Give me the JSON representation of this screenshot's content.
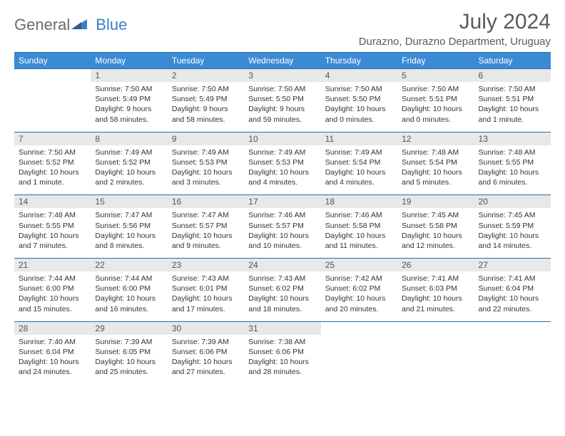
{
  "logo": {
    "text_general": "General",
    "text_blue": "Blue"
  },
  "title": "July 2024",
  "location": "Durazno, Durazno Department, Uruguay",
  "colors": {
    "header_bg": "#3b8bd4",
    "header_border": "#2f6aa8",
    "daynum_bg": "#e8e8e8",
    "logo_gray": "#6b6b6b",
    "logo_blue": "#3b7fc4"
  },
  "weekdays": [
    "Sunday",
    "Monday",
    "Tuesday",
    "Wednesday",
    "Thursday",
    "Friday",
    "Saturday"
  ],
  "weeks": [
    {
      "nums": [
        "",
        "1",
        "2",
        "3",
        "4",
        "5",
        "6"
      ],
      "cells": [
        {
          "sunrise": "",
          "sunset": "",
          "daylight": ""
        },
        {
          "sunrise": "Sunrise: 7:50 AM",
          "sunset": "Sunset: 5:49 PM",
          "daylight": "Daylight: 9 hours and 58 minutes."
        },
        {
          "sunrise": "Sunrise: 7:50 AM",
          "sunset": "Sunset: 5:49 PM",
          "daylight": "Daylight: 9 hours and 58 minutes."
        },
        {
          "sunrise": "Sunrise: 7:50 AM",
          "sunset": "Sunset: 5:50 PM",
          "daylight": "Daylight: 9 hours and 59 minutes."
        },
        {
          "sunrise": "Sunrise: 7:50 AM",
          "sunset": "Sunset: 5:50 PM",
          "daylight": "Daylight: 10 hours and 0 minutes."
        },
        {
          "sunrise": "Sunrise: 7:50 AM",
          "sunset": "Sunset: 5:51 PM",
          "daylight": "Daylight: 10 hours and 0 minutes."
        },
        {
          "sunrise": "Sunrise: 7:50 AM",
          "sunset": "Sunset: 5:51 PM",
          "daylight": "Daylight: 10 hours and 1 minute."
        }
      ]
    },
    {
      "nums": [
        "7",
        "8",
        "9",
        "10",
        "11",
        "12",
        "13"
      ],
      "cells": [
        {
          "sunrise": "Sunrise: 7:50 AM",
          "sunset": "Sunset: 5:52 PM",
          "daylight": "Daylight: 10 hours and 1 minute."
        },
        {
          "sunrise": "Sunrise: 7:49 AM",
          "sunset": "Sunset: 5:52 PM",
          "daylight": "Daylight: 10 hours and 2 minutes."
        },
        {
          "sunrise": "Sunrise: 7:49 AM",
          "sunset": "Sunset: 5:53 PM",
          "daylight": "Daylight: 10 hours and 3 minutes."
        },
        {
          "sunrise": "Sunrise: 7:49 AM",
          "sunset": "Sunset: 5:53 PM",
          "daylight": "Daylight: 10 hours and 4 minutes."
        },
        {
          "sunrise": "Sunrise: 7:49 AM",
          "sunset": "Sunset: 5:54 PM",
          "daylight": "Daylight: 10 hours and 4 minutes."
        },
        {
          "sunrise": "Sunrise: 7:48 AM",
          "sunset": "Sunset: 5:54 PM",
          "daylight": "Daylight: 10 hours and 5 minutes."
        },
        {
          "sunrise": "Sunrise: 7:48 AM",
          "sunset": "Sunset: 5:55 PM",
          "daylight": "Daylight: 10 hours and 6 minutes."
        }
      ]
    },
    {
      "nums": [
        "14",
        "15",
        "16",
        "17",
        "18",
        "19",
        "20"
      ],
      "cells": [
        {
          "sunrise": "Sunrise: 7:48 AM",
          "sunset": "Sunset: 5:55 PM",
          "daylight": "Daylight: 10 hours and 7 minutes."
        },
        {
          "sunrise": "Sunrise: 7:47 AM",
          "sunset": "Sunset: 5:56 PM",
          "daylight": "Daylight: 10 hours and 8 minutes."
        },
        {
          "sunrise": "Sunrise: 7:47 AM",
          "sunset": "Sunset: 5:57 PM",
          "daylight": "Daylight: 10 hours and 9 minutes."
        },
        {
          "sunrise": "Sunrise: 7:46 AM",
          "sunset": "Sunset: 5:57 PM",
          "daylight": "Daylight: 10 hours and 10 minutes."
        },
        {
          "sunrise": "Sunrise: 7:46 AM",
          "sunset": "Sunset: 5:58 PM",
          "daylight": "Daylight: 10 hours and 11 minutes."
        },
        {
          "sunrise": "Sunrise: 7:45 AM",
          "sunset": "Sunset: 5:58 PM",
          "daylight": "Daylight: 10 hours and 12 minutes."
        },
        {
          "sunrise": "Sunrise: 7:45 AM",
          "sunset": "Sunset: 5:59 PM",
          "daylight": "Daylight: 10 hours and 14 minutes."
        }
      ]
    },
    {
      "nums": [
        "21",
        "22",
        "23",
        "24",
        "25",
        "26",
        "27"
      ],
      "cells": [
        {
          "sunrise": "Sunrise: 7:44 AM",
          "sunset": "Sunset: 6:00 PM",
          "daylight": "Daylight: 10 hours and 15 minutes."
        },
        {
          "sunrise": "Sunrise: 7:44 AM",
          "sunset": "Sunset: 6:00 PM",
          "daylight": "Daylight: 10 hours and 16 minutes."
        },
        {
          "sunrise": "Sunrise: 7:43 AM",
          "sunset": "Sunset: 6:01 PM",
          "daylight": "Daylight: 10 hours and 17 minutes."
        },
        {
          "sunrise": "Sunrise: 7:43 AM",
          "sunset": "Sunset: 6:02 PM",
          "daylight": "Daylight: 10 hours and 18 minutes."
        },
        {
          "sunrise": "Sunrise: 7:42 AM",
          "sunset": "Sunset: 6:02 PM",
          "daylight": "Daylight: 10 hours and 20 minutes."
        },
        {
          "sunrise": "Sunrise: 7:41 AM",
          "sunset": "Sunset: 6:03 PM",
          "daylight": "Daylight: 10 hours and 21 minutes."
        },
        {
          "sunrise": "Sunrise: 7:41 AM",
          "sunset": "Sunset: 6:04 PM",
          "daylight": "Daylight: 10 hours and 22 minutes."
        }
      ]
    },
    {
      "nums": [
        "28",
        "29",
        "30",
        "31",
        "",
        "",
        ""
      ],
      "cells": [
        {
          "sunrise": "Sunrise: 7:40 AM",
          "sunset": "Sunset: 6:04 PM",
          "daylight": "Daylight: 10 hours and 24 minutes."
        },
        {
          "sunrise": "Sunrise: 7:39 AM",
          "sunset": "Sunset: 6:05 PM",
          "daylight": "Daylight: 10 hours and 25 minutes."
        },
        {
          "sunrise": "Sunrise: 7:39 AM",
          "sunset": "Sunset: 6:06 PM",
          "daylight": "Daylight: 10 hours and 27 minutes."
        },
        {
          "sunrise": "Sunrise: 7:38 AM",
          "sunset": "Sunset: 6:06 PM",
          "daylight": "Daylight: 10 hours and 28 minutes."
        },
        {
          "sunrise": "",
          "sunset": "",
          "daylight": ""
        },
        {
          "sunrise": "",
          "sunset": "",
          "daylight": ""
        },
        {
          "sunrise": "",
          "sunset": "",
          "daylight": ""
        }
      ]
    }
  ]
}
